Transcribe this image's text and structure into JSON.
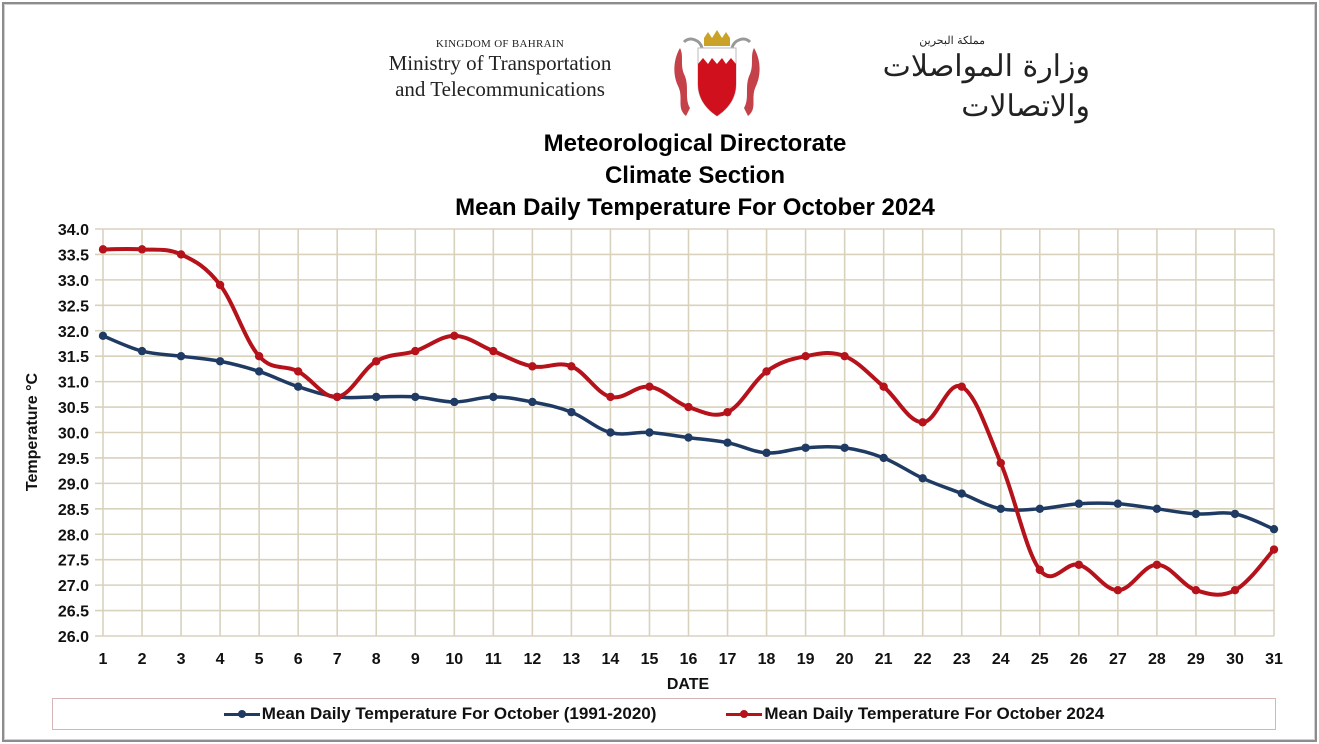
{
  "header": {
    "kingdom_en": "KINGDOM OF BAHRAIN",
    "ministry_en_line1": "Ministry of Transportation",
    "ministry_en_line2": "and Telecommunications",
    "kingdom_ar": "مملكة البحرين",
    "ministry_ar": "وزارة المواصلات والاتصالات",
    "emblem": "bahrain-coat-of-arms"
  },
  "colors": {
    "series_normal": "#1f3b63",
    "series_2024": "#b5121b",
    "grid": "#d8d2bd",
    "legend_border": "#d5b5b5"
  },
  "chart_data": {
    "type": "line",
    "title_lines": [
      "Meteorological Directorate",
      "Climate Section",
      "Mean Daily Temperature For October 2024"
    ],
    "xlabel": "DATE",
    "ylabel": "Temperature °C",
    "ylim": [
      26.0,
      34.0
    ],
    "ytick_step": 0.5,
    "yticks": [
      "34.0",
      "33.5",
      "33.0",
      "32.5",
      "32.0",
      "31.5",
      "31.0",
      "30.5",
      "30.0",
      "29.5",
      "29.0",
      "28.5",
      "28.0",
      "27.5",
      "27.0",
      "26.5",
      "26.0"
    ],
    "x": [
      1,
      2,
      3,
      4,
      5,
      6,
      7,
      8,
      9,
      10,
      11,
      12,
      13,
      14,
      15,
      16,
      17,
      18,
      19,
      20,
      21,
      22,
      23,
      24,
      25,
      26,
      27,
      28,
      29,
      30,
      31
    ],
    "grid": true,
    "legend_position": "bottom",
    "series": [
      {
        "name": "Mean Daily Temperature For October (1991-2020)",
        "color": "#1f3b63",
        "values": [
          31.9,
          31.6,
          31.5,
          31.4,
          31.2,
          30.9,
          30.7,
          30.7,
          30.7,
          30.6,
          30.7,
          30.6,
          30.4,
          30.0,
          30.0,
          29.9,
          29.8,
          29.6,
          29.7,
          29.7,
          29.5,
          29.1,
          28.8,
          28.5,
          28.5,
          28.6,
          28.6,
          28.5,
          28.4,
          28.4,
          28.1
        ]
      },
      {
        "name": "Mean Daily Temperature For October 2024",
        "color": "#b5121b",
        "values": [
          33.6,
          33.6,
          33.5,
          32.9,
          31.5,
          31.2,
          30.7,
          31.4,
          31.6,
          31.9,
          31.6,
          31.3,
          31.3,
          30.7,
          30.9,
          30.5,
          30.4,
          31.2,
          31.5,
          31.5,
          30.9,
          30.2,
          30.9,
          29.4,
          27.3,
          27.4,
          26.9,
          27.4,
          26.9,
          26.9,
          27.7
        ]
      }
    ]
  }
}
